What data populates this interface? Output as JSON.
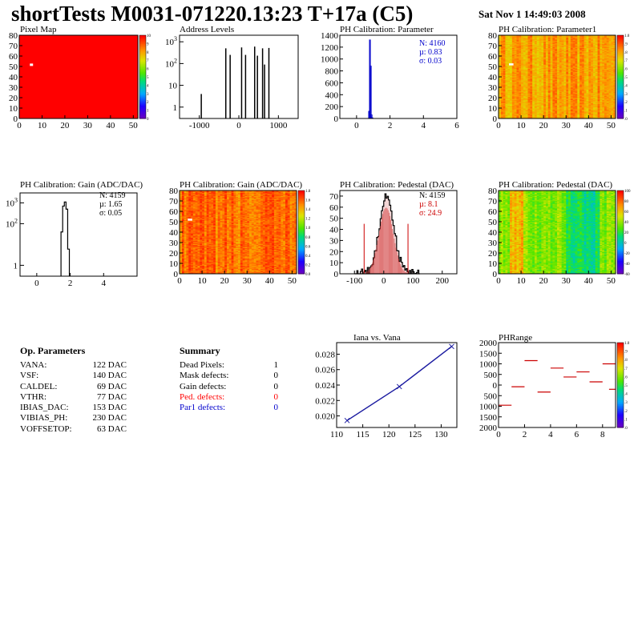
{
  "header": {
    "title": "shortTests M0031-071220.13:23 T+17a (C5)",
    "date": "Sat Nov  1 14:49:03 2008"
  },
  "colors": {
    "red": "#ff0000",
    "blue": "#0000cc",
    "hist_fill": "#d23a3a"
  },
  "panels": {
    "pixel_map": {
      "title": "Pixel Map"
    },
    "address_levels": {
      "title": "Address Levels"
    },
    "phcal_param": {
      "title": "PH Calibration: Parameter",
      "stats": [
        "N: 4160",
        "µ: 0.83",
        "σ: 0.03"
      ]
    },
    "phcal_param1": {
      "title": "PH Calibration: Parameter1"
    },
    "gain_hist": {
      "title": "PH Calibration: Gain (ADC/DAC)",
      "stats": [
        "N: 4159",
        "µ: 1.65",
        "σ: 0.05"
      ]
    },
    "gain_map": {
      "title": "PH Calibration: Gain (ADC/DAC)"
    },
    "ped_hist": {
      "title": "PH Calibration: Pedestal (DAC)",
      "stats": [
        "N: 4159",
        "µ:  8.1",
        "σ: 24.9"
      ]
    },
    "ped_map": {
      "title": "PH Calibration: Pedestal (DAC)"
    },
    "iana": {
      "title": "Iana vs. Vana"
    },
    "phrange": {
      "title": "PHRange"
    }
  },
  "op_params": {
    "title": "Op. Parameters",
    "rows": [
      {
        "name": "VANA:",
        "value": "122 DAC"
      },
      {
        "name": "VSF:",
        "value": "140 DAC"
      },
      {
        "name": "CALDEL:",
        "value": "69 DAC"
      },
      {
        "name": "VTHR:",
        "value": "77 DAC"
      },
      {
        "name": "IBIAS_DAC:",
        "value": "153 DAC"
      },
      {
        "name": "VIBIAS_PH:",
        "value": "230 DAC"
      },
      {
        "name": "VOFFSETOP:",
        "value": "63 DAC"
      }
    ]
  },
  "summary": {
    "title": "Summary",
    "rows": [
      {
        "name": "Dead Pixels:",
        "value": "1",
        "color": "#000000"
      },
      {
        "name": "Mask defects:",
        "value": "0",
        "color": "#000000"
      },
      {
        "name": "Gain defects:",
        "value": "0",
        "color": "#000000"
      },
      {
        "name": "Ped. defects:",
        "value": "0",
        "color": "#ff0000"
      },
      {
        "name": "Par1 defects:",
        "value": "0",
        "color": "#0000cc"
      }
    ]
  },
  "chart_data": [
    {
      "id": "pixel_map",
      "type": "heatmap",
      "title": "Pixel Map",
      "xlim": [
        0,
        52
      ],
      "ylim": [
        0,
        80
      ],
      "zlim": [
        0,
        10
      ],
      "xticks": [
        0,
        10,
        20,
        30,
        40,
        50
      ],
      "yticks": [
        0,
        10,
        20,
        30,
        40,
        50,
        60,
        70,
        80
      ],
      "palette": "root-rainbow",
      "uniform_value": 10,
      "dead_pixels": [
        {
          "x": 5,
          "y": 52
        }
      ]
    },
    {
      "id": "address_levels",
      "type": "bar",
      "title": "Address Levels",
      "log_y": true,
      "xlim": [
        -1500,
        1500
      ],
      "xticks": [
        -1000,
        0,
        1000
      ],
      "peaks": [
        {
          "x": -950,
          "y": 4
        },
        {
          "x": -330,
          "y": 500
        },
        {
          "x": -220,
          "y": 250
        },
        {
          "x": 70,
          "y": 550
        },
        {
          "x": 170,
          "y": 250
        },
        {
          "x": 400,
          "y": 600
        },
        {
          "x": 470,
          "y": 230
        },
        {
          "x": 600,
          "y": 500
        },
        {
          "x": 650,
          "y": 90
        },
        {
          "x": 760,
          "y": 520
        }
      ]
    },
    {
      "id": "phcal_param",
      "type": "bar",
      "title": "PH Calibration: Parameter",
      "xlim": [
        -1,
        6
      ],
      "ylim": [
        0,
        1400
      ],
      "xticks": [
        0,
        2,
        4,
        6
      ],
      "yticks": [
        0,
        200,
        400,
        600,
        800,
        1000,
        1200,
        1400
      ],
      "x": [
        0.75,
        0.8,
        0.85,
        0.9,
        0.95
      ],
      "values": [
        120,
        1320,
        880,
        60,
        10
      ]
    },
    {
      "id": "phcal_param1",
      "type": "heatmap",
      "title": "PH Calibration: Parameter1",
      "xlim": [
        0,
        52
      ],
      "ylim": [
        0,
        80
      ],
      "zlim": [
        0,
        1
      ],
      "xticks": [
        0,
        10,
        20,
        30,
        40,
        50
      ],
      "yticks": [
        0,
        10,
        20,
        30,
        40,
        50,
        60,
        70,
        80
      ],
      "palette": "root-rainbow",
      "typical_range": [
        0.72,
        0.9
      ]
    },
    {
      "id": "gain_hist",
      "type": "bar",
      "title": "PH Calibration: Gain (ADC/DAC)",
      "log_y": true,
      "xlim": [
        -1,
        6
      ],
      "xticks": [
        0,
        2,
        4
      ],
      "x": [
        1.5,
        1.6,
        1.7,
        1.8,
        1.9
      ],
      "values": [
        40,
        700,
        1100,
        500,
        6
      ]
    },
    {
      "id": "gain_map",
      "type": "heatmap",
      "title": "PH Calibration: Gain (ADC/DAC)",
      "xlim": [
        0,
        52
      ],
      "ylim": [
        0,
        80
      ],
      "zlim": [
        0,
        1.8
      ],
      "xticks": [
        0,
        10,
        20,
        30,
        40,
        50
      ],
      "yticks": [
        0,
        10,
        20,
        30,
        40,
        50,
        60,
        70,
        80
      ],
      "palette": "root-rainbow",
      "typical_range": [
        1.5,
        1.8
      ]
    },
    {
      "id": "ped_hist",
      "type": "bar",
      "title": "PH Calibration: Pedestal (DAC)",
      "xlim": [
        -150,
        250
      ],
      "ylim": [
        0,
        75
      ],
      "xticks": [
        -100,
        0,
        100,
        200
      ],
      "yticks": [
        0,
        10,
        20,
        30,
        40,
        50,
        60,
        70
      ],
      "mean": 8.1,
      "sigma": 24.9,
      "peak": 70,
      "cut_lines": [
        -67,
        83
      ]
    },
    {
      "id": "ped_map",
      "type": "heatmap",
      "title": "PH Calibration: Pedestal (DAC)",
      "xlim": [
        0,
        52
      ],
      "ylim": [
        0,
        80
      ],
      "zlim": [
        -60,
        100
      ],
      "xticks": [
        0,
        10,
        20,
        30,
        40,
        50
      ],
      "yticks": [
        0,
        10,
        20,
        30,
        40,
        50,
        60,
        70,
        80
      ],
      "palette": "root-rainbow"
    },
    {
      "id": "iana",
      "type": "line",
      "title": "Iana vs. Vana",
      "xlim": [
        110,
        133
      ],
      "ylim": [
        0.0185,
        0.0295
      ],
      "xticks": [
        110,
        115,
        120,
        125,
        130
      ],
      "yticks": [
        0.02,
        0.022,
        0.024,
        0.026,
        0.028
      ],
      "x": [
        112,
        122,
        132
      ],
      "y": [
        0.0194,
        0.0238,
        0.029
      ]
    },
    {
      "id": "phrange",
      "type": "scatter",
      "title": "PHRange",
      "xlim": [
        0,
        9
      ],
      "ylim": [
        -2000,
        2000
      ],
      "zlim": [
        0,
        1
      ],
      "xticks": [
        0,
        2,
        4,
        6,
        8
      ],
      "yticks": [
        -2000,
        -1500,
        -1000,
        -500,
        0,
        500,
        1000,
        1500,
        2000
      ],
      "points": [
        {
          "x": 0.5,
          "y": -950
        },
        {
          "x": 1.5,
          "y": -80
        },
        {
          "x": 2.5,
          "y": 1150
        },
        {
          "x": 3.5,
          "y": -330
        },
        {
          "x": 4.5,
          "y": 800
        },
        {
          "x": 5.5,
          "y": 380
        },
        {
          "x": 6.5,
          "y": 620
        },
        {
          "x": 7.5,
          "y": 150
        },
        {
          "x": 8.5,
          "y": 1000
        },
        {
          "x": 9,
          "y": -200
        }
      ]
    }
  ]
}
